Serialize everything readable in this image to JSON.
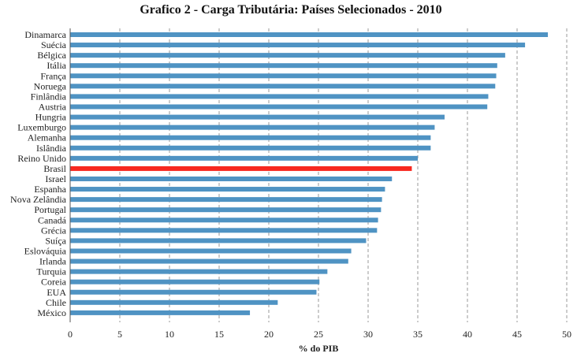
{
  "chart_data": {
    "type": "bar",
    "orientation": "horizontal",
    "title": "Grafico 2 - Carga Tributária: Países Selecionados - 2010",
    "xlabel": "% do PIB",
    "ylabel": "",
    "xlim": [
      0,
      50
    ],
    "xticks": [
      "0",
      "5",
      "10",
      "15",
      "20",
      "25",
      "30",
      "35",
      "40",
      "45",
      "50"
    ],
    "grid": "vertical dashed",
    "categories": [
      "Dinamarca",
      "Suécia",
      "Bélgica",
      "Itália",
      "França",
      "Noruega",
      "Finlândia",
      "Austria",
      "Hungria",
      "Luxemburgo",
      "Alemanha",
      "Islândia",
      "Reino Unido",
      "Brasil",
      "Israel",
      "Espanha",
      "Nova Zelândia",
      "Portugal",
      "Canadá",
      "Grécia",
      "Suíça",
      "Eslováquia",
      "Irlanda",
      "Turquia",
      "Coreia",
      "EUA",
      "Chile",
      "México"
    ],
    "values": [
      48.1,
      45.8,
      43.8,
      43.0,
      42.9,
      42.8,
      42.1,
      42.0,
      37.7,
      36.7,
      36.3,
      36.3,
      35.0,
      34.4,
      32.4,
      31.7,
      31.4,
      31.3,
      31.0,
      30.9,
      29.8,
      28.3,
      28.0,
      25.9,
      25.1,
      24.8,
      20.9,
      18.1
    ],
    "highlight": "Brasil",
    "colors": {
      "bar": "#4f93c3",
      "highlight": "#f7281f",
      "grid": "#9a9a9a"
    }
  }
}
